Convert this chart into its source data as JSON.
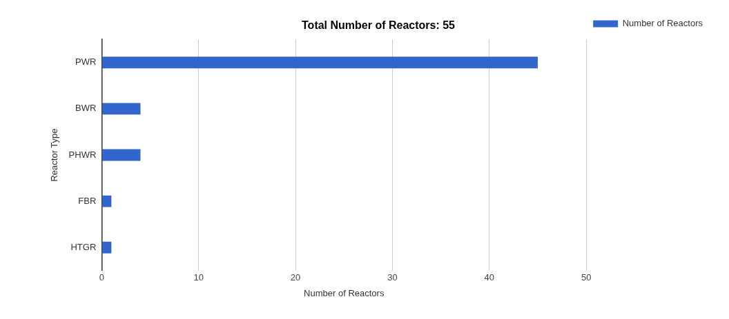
{
  "chart_data": {
    "type": "bar",
    "orientation": "horizontal",
    "title": "Total Number of Reactors: 55",
    "xlabel": "Number of Reactors",
    "ylabel": "Reactor Type",
    "categories": [
      "PWR",
      "BWR",
      "PHWR",
      "FBR",
      "HTGR"
    ],
    "series": [
      {
        "name": "Number of Reactors",
        "color": "#3366cc",
        "values": [
          45,
          4,
          4,
          1,
          1
        ]
      }
    ],
    "xlim": [
      0,
      50
    ],
    "xticks": [
      0,
      10,
      20,
      30,
      40,
      50
    ],
    "grid": "x",
    "legend": "top right"
  }
}
